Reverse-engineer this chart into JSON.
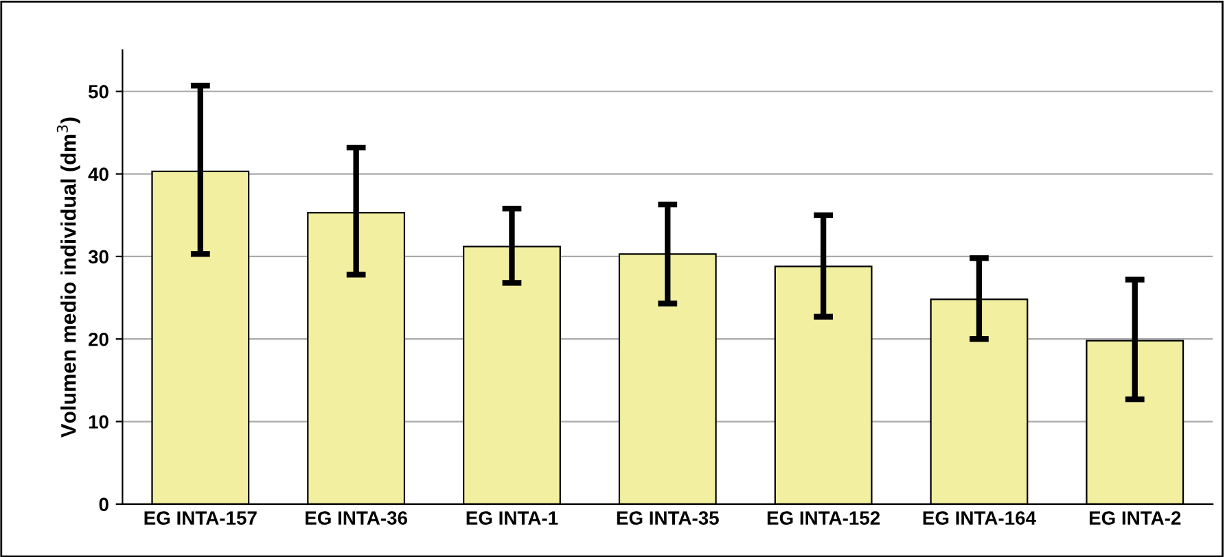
{
  "chart_data": {
    "type": "bar",
    "ylabel": "Volumen medio individual (dm$^{3}$)",
    "categories": [
      "EG INTA-157",
      "EG INTA-36",
      "EG INTA-1",
      "EG INTA-35",
      "EG INTA-152",
      "EG INTA-164",
      "EG INTA-2"
    ],
    "values": [
      40.3,
      35.3,
      31.2,
      30.3,
      28.8,
      24.8,
      19.8
    ],
    "errors": [
      [
        30.3,
        50.7
      ],
      [
        27.8,
        43.2
      ],
      [
        26.8,
        35.8
      ],
      [
        24.3,
        36.3
      ],
      [
        22.7,
        35.0
      ],
      [
        20.0,
        29.8
      ],
      [
        12.7,
        27.2
      ]
    ],
    "color": "#f2f0a0",
    "ylim": [
      0,
      55
    ],
    "yticks": [
      0,
      10,
      20,
      30,
      40,
      50
    ],
    "grid": "y",
    "legend": false
  }
}
